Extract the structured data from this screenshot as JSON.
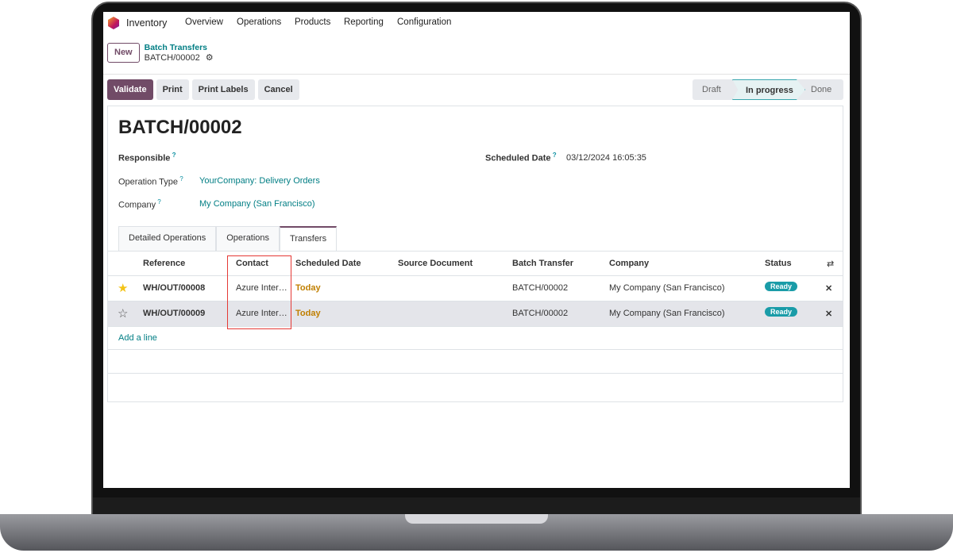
{
  "nav": {
    "app": "Inventory",
    "items": [
      "Overview",
      "Operations",
      "Products",
      "Reporting",
      "Configuration"
    ]
  },
  "breadcrumb": {
    "parent": "Batch Transfers",
    "current": "BATCH/00002",
    "new_label": "New"
  },
  "actions": {
    "validate": "Validate",
    "print": "Print",
    "print_labels": "Print Labels",
    "cancel": "Cancel"
  },
  "statusbar": {
    "stages": [
      "Draft",
      "In progress",
      "Done"
    ],
    "active": "In progress"
  },
  "form": {
    "title": "BATCH/00002",
    "responsible_label": "Responsible",
    "responsible_value": "",
    "scheduled_label": "Scheduled Date",
    "scheduled_value": "03/12/2024 16:05:35",
    "optype_label": "Operation Type",
    "optype_value": "YourCompany: Delivery Orders",
    "company_label": "Company",
    "company_value": "My Company (San Francisco)"
  },
  "tabs": [
    "Detailed Operations",
    "Operations",
    "Transfers"
  ],
  "active_tab": "Transfers",
  "table": {
    "columns": [
      "Reference",
      "Contact",
      "Scheduled Date",
      "Source Document",
      "Batch Transfer",
      "Company",
      "Status"
    ],
    "rows": [
      {
        "starred": true,
        "reference": "WH/OUT/00008",
        "contact": "Azure Inter…",
        "scheduled": "Today",
        "source": "",
        "batch": "BATCH/00002",
        "company": "My Company (San Francisco)",
        "status": "Ready"
      },
      {
        "starred": false,
        "reference": "WH/OUT/00009",
        "contact": "Azure Inter…",
        "scheduled": "Today",
        "source": "",
        "batch": "BATCH/00002",
        "company": "My Company (San Francisco)",
        "status": "Ready"
      }
    ],
    "add_line": "Add a line"
  },
  "colors": {
    "primary": "#714b67",
    "link": "#017e84",
    "today": "#c07f00",
    "badge": "#1a9ca8",
    "highlight": "#e53935"
  }
}
